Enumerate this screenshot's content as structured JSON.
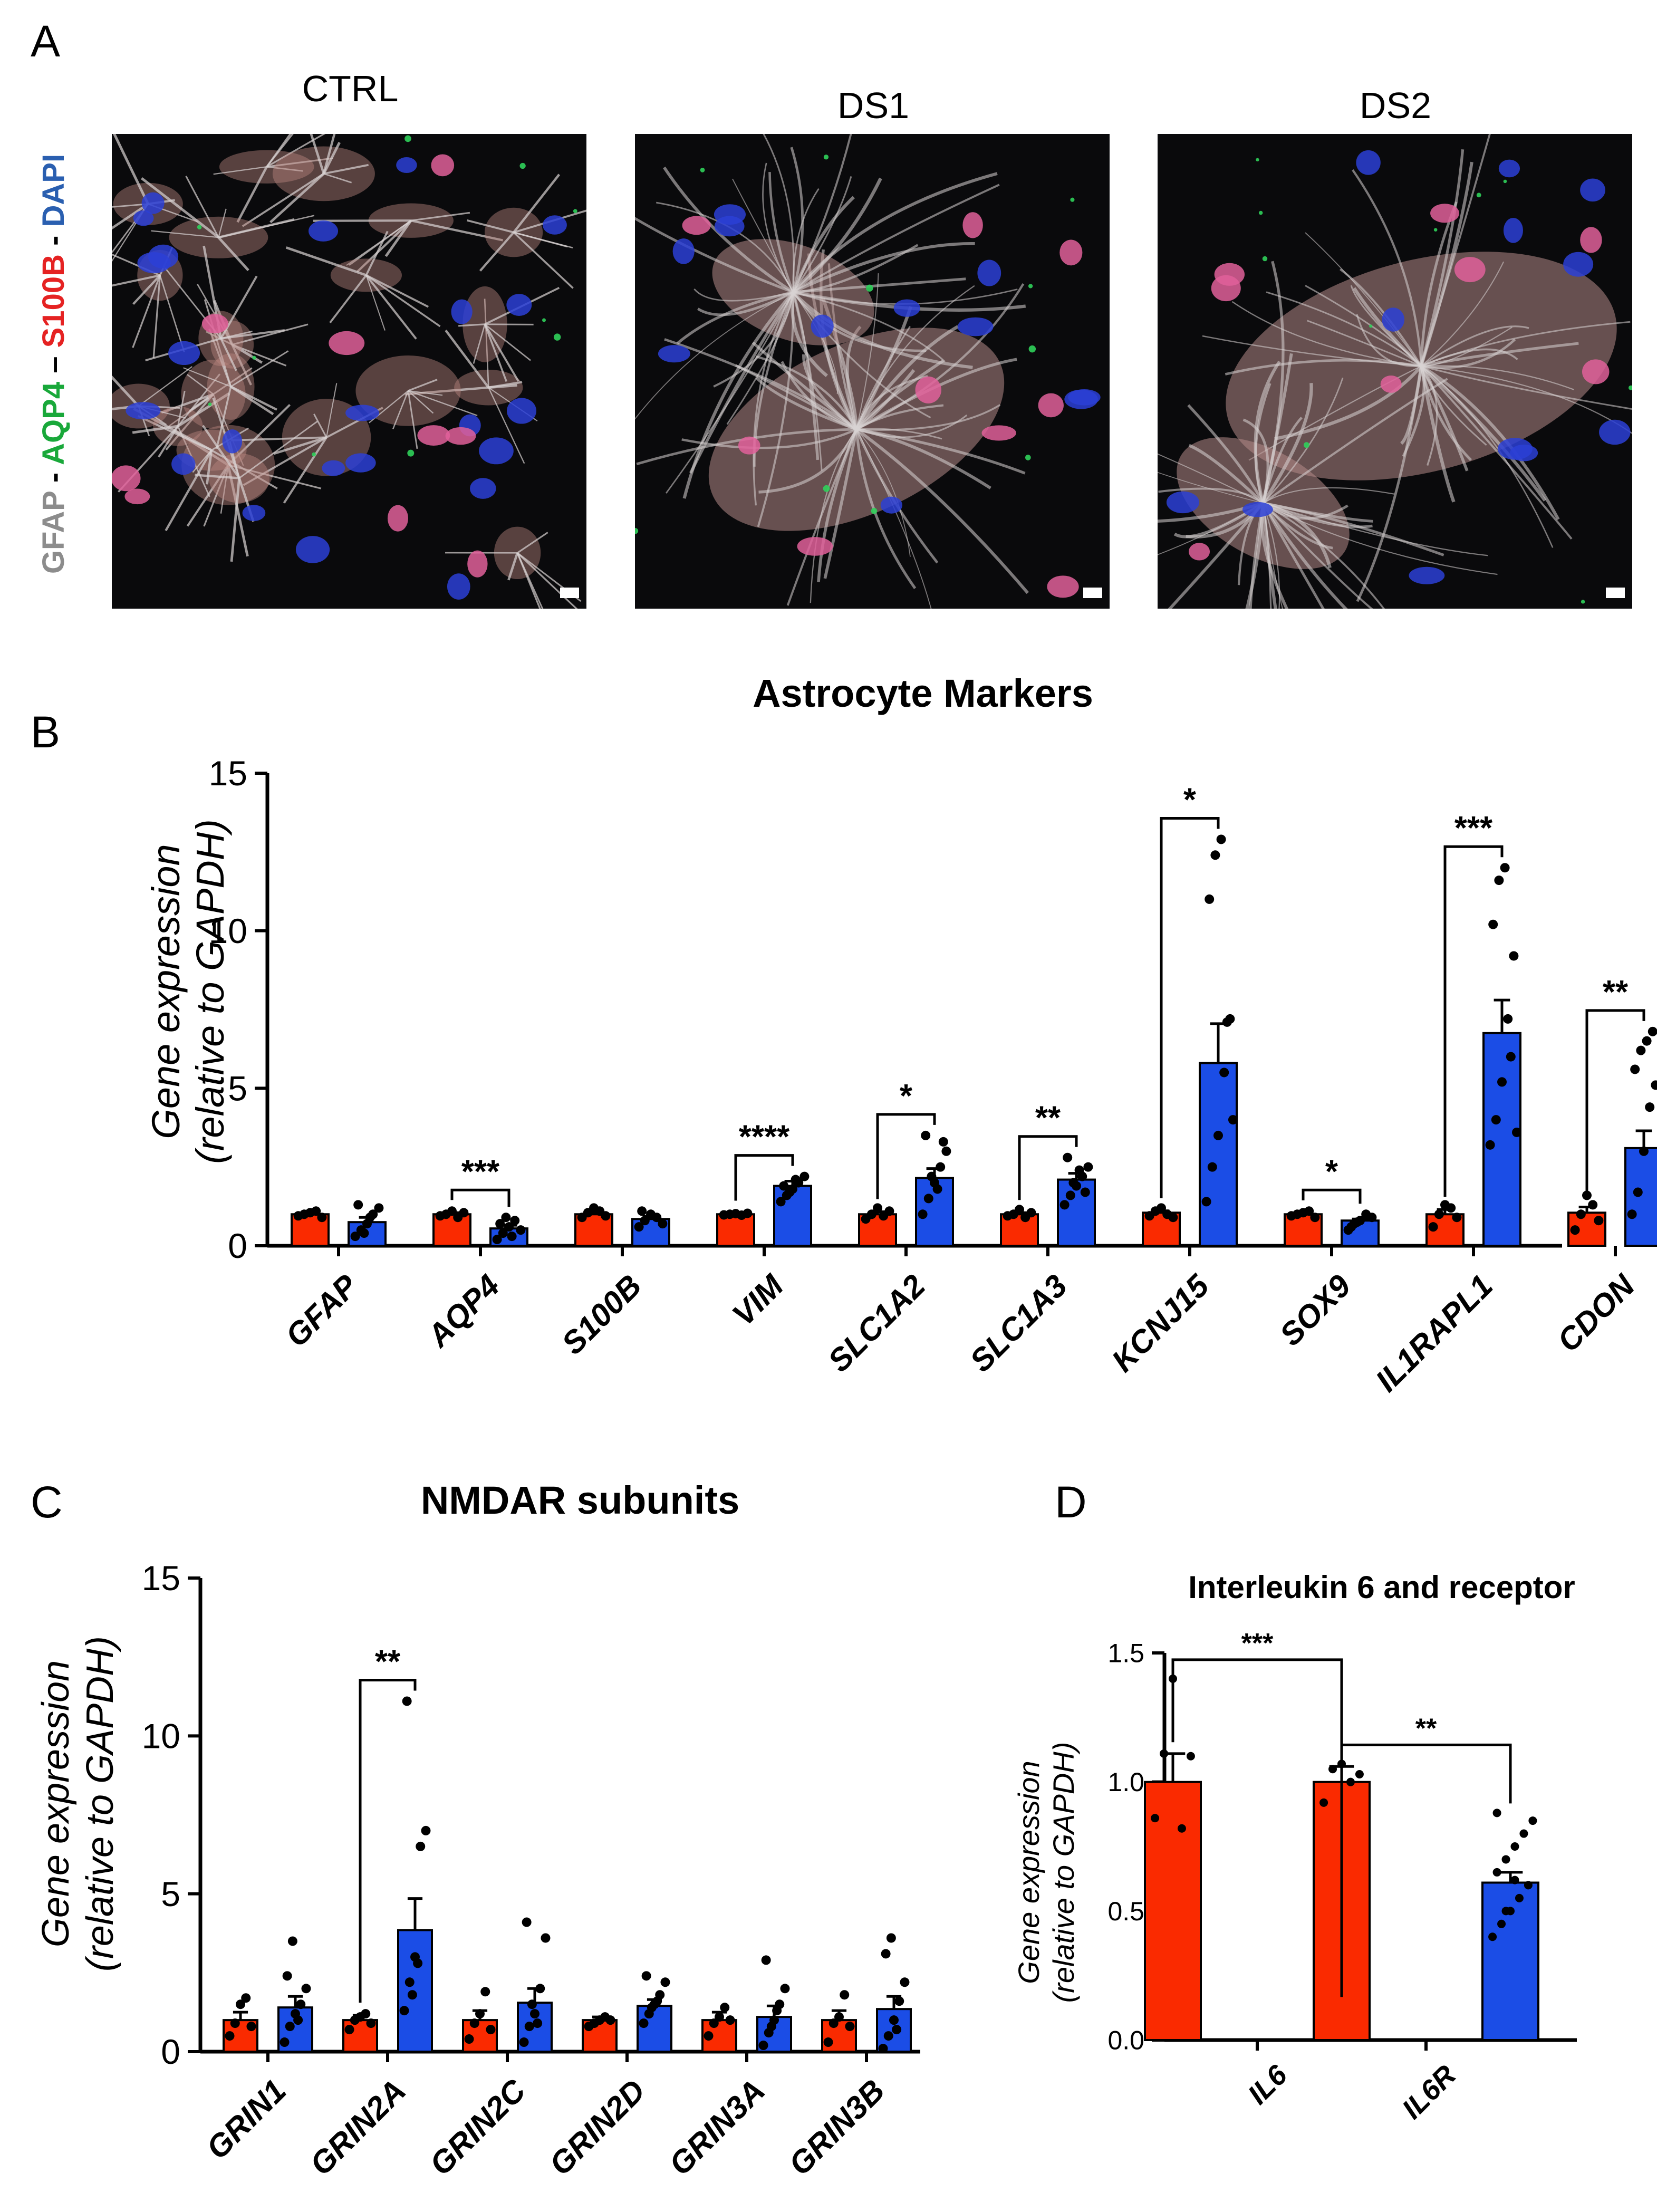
{
  "panel_labels": [
    "A",
    "B",
    "C",
    "D"
  ],
  "panel_a": {
    "titles": [
      "CTRL",
      "DS1",
      "DS2"
    ],
    "stain_label_parts": [
      {
        "text": "GFAP",
        "color": "#8c8c8c"
      },
      {
        "text": " - ",
        "color": "#000000"
      },
      {
        "text": "AQP4",
        "color": "#19a83a"
      },
      {
        "text": " – ",
        "color": "#000000"
      },
      {
        "text": "S100B",
        "color": "#e52222"
      },
      {
        "text": " - ",
        "color": "#000000"
      },
      {
        "text": "DAPI",
        "color": "#2a5fb0"
      }
    ],
    "channel_colors": {
      "gfap": "#d9d3d3",
      "s100b": "#e0609a",
      "dapi": "#2c3fd6",
      "aqp4": "#2fd05a"
    }
  },
  "colors": {
    "group1": "#fa2a00",
    "group2": "#1b4de6",
    "axis": "#000000"
  },
  "chart_data": [
    {
      "id": "B",
      "type": "bar",
      "title": "Astrocyte Markers",
      "ylabel": "Gene expression (relative to GAPDH)",
      "ylabel_lines": [
        "Gene expression",
        "(relative to GAPDH)"
      ],
      "ylim": [
        0,
        15
      ],
      "yticks": [
        "0",
        "5",
        "10",
        "15"
      ],
      "categories": [
        "GFAP",
        "AQP4",
        "S100B",
        "VIM",
        "SLC1A2",
        "SLC1A3",
        "KCNJ15",
        "SOX9",
        "IL1RAPL1",
        "CDON"
      ],
      "series": [
        {
          "color": "#fa2a00",
          "values": [
            1.0,
            1.0,
            1.0,
            1.0,
            1.0,
            1.0,
            1.05,
            1.0,
            1.0,
            1.05
          ],
          "sem": [
            0.05,
            0.05,
            0.06,
            0.03,
            0.08,
            0.05,
            0.06,
            0.04,
            0.15,
            0.18
          ],
          "points": [
            [
              0.95,
              1.0,
              1.05,
              1.1,
              0.9
            ],
            [
              0.95,
              1.0,
              1.1,
              0.9,
              1.05
            ],
            [
              0.9,
              1.05,
              1.2,
              1.1,
              0.95
            ],
            [
              0.98,
              1.0,
              1.02,
              0.97,
              1.03
            ],
            [
              0.85,
              1.0,
              1.2,
              0.95,
              1.1
            ],
            [
              0.95,
              1.0,
              1.15,
              0.9,
              1.05
            ],
            [
              0.95,
              1.1,
              1.2,
              1.0,
              0.9
            ],
            [
              0.95,
              1.0,
              1.05,
              1.1,
              0.9
            ],
            [
              0.6,
              1.0,
              1.3,
              1.2,
              0.9
            ],
            [
              0.5,
              1.0,
              1.6,
              1.3,
              0.8
            ]
          ]
        },
        {
          "color": "#1b4de6",
          "values": [
            0.75,
            0.55,
            0.85,
            1.9,
            2.15,
            2.1,
            5.8,
            0.8,
            6.75,
            3.1
          ],
          "sem": [
            0.15,
            0.1,
            0.08,
            0.15,
            0.3,
            0.2,
            1.25,
            0.05,
            1.05,
            0.55
          ],
          "points": [
            [
              0.3,
              0.5,
              0.7,
              1.0,
              1.2,
              1.3,
              0.4,
              0.9
            ],
            [
              0.2,
              0.4,
              0.6,
              0.8,
              0.5,
              0.7,
              0.9,
              0.3
            ],
            [
              0.6,
              0.8,
              1.0,
              0.9,
              0.7,
              1.1
            ],
            [
              1.4,
              1.6,
              1.8,
              2.0,
              2.2,
              1.9,
              1.7,
              2.1
            ],
            [
              1.0,
              1.5,
              2.0,
              2.5,
              3.0,
              3.5,
              2.2,
              1.8,
              3.3
            ],
            [
              1.3,
              1.6,
              1.9,
              2.2,
              2.5,
              2.8,
              2.0,
              2.4,
              1.7
            ],
            [
              1.4,
              2.5,
              3.5,
              5.5,
              7.2,
              11.0,
              12.4,
              12.9,
              7.1,
              4.0
            ],
            [
              0.5,
              0.7,
              0.8,
              1.0,
              0.9,
              0.6,
              0.75
            ],
            [
              3.2,
              4.0,
              5.2,
              7.2,
              9.2,
              10.2,
              11.6,
              12.0,
              6.0,
              3.6
            ],
            [
              1.0,
              1.7,
              3.0,
              4.4,
              5.1,
              5.6,
              6.2,
              6.5,
              6.8
            ]
          ]
        }
      ],
      "significance": [
        {
          "category": 1,
          "label": "***"
        },
        {
          "category": 3,
          "label": "****"
        },
        {
          "category": 4,
          "label": "*"
        },
        {
          "category": 5,
          "label": "**"
        },
        {
          "category": 6,
          "label": "*"
        },
        {
          "category": 7,
          "label": "*"
        },
        {
          "category": 8,
          "label": "***"
        },
        {
          "category": 9,
          "label": "**"
        }
      ],
      "grid": false,
      "legend": "none"
    },
    {
      "id": "C",
      "type": "bar",
      "title": "NMDAR subunits",
      "ylabel": "Gene expression (relative to GAPDH)",
      "ylabel_lines": [
        "Gene expression",
        "(relative to GAPDH)"
      ],
      "ylim": [
        0,
        15
      ],
      "yticks": [
        "0",
        "5",
        "10",
        "15"
      ],
      "categories": [
        "GRIN1",
        "GRIN2A",
        "GRIN2C",
        "GRIN2D",
        "GRIN3A",
        "GRIN3B"
      ],
      "series": [
        {
          "color": "#fa2a00",
          "values": [
            1.0,
            1.0,
            1.0,
            1.0,
            1.0,
            1.0
          ],
          "sem": [
            0.25,
            0.15,
            0.3,
            0.1,
            0.25,
            0.3
          ],
          "points": [
            [
              0.5,
              0.9,
              1.5,
              1.7,
              0.8
            ],
            [
              0.7,
              1.0,
              1.1,
              1.2,
              0.9
            ],
            [
              0.4,
              0.9,
              1.2,
              1.9,
              0.7
            ],
            [
              0.8,
              0.9,
              1.0,
              1.1,
              1.0
            ],
            [
              0.5,
              0.9,
              1.1,
              1.4,
              1.0
            ],
            [
              0.3,
              0.9,
              1.1,
              1.8,
              0.8
            ]
          ]
        },
        {
          "color": "#1b4de6",
          "values": [
            1.4,
            3.85,
            1.55,
            1.45,
            1.1,
            1.35
          ],
          "sem": [
            0.35,
            1.0,
            0.45,
            0.2,
            0.35,
            0.4
          ],
          "points": [
            [
              0.3,
              0.8,
              1.2,
              1.5,
              2.0,
              2.4,
              3.5,
              1.0
            ],
            [
              1.3,
              2.2,
              3.0,
              6.5,
              7.0,
              11.1,
              1.8,
              2.8
            ],
            [
              0.3,
              0.8,
              1.2,
              2.0,
              3.6,
              4.1,
              1.5,
              0.9
            ],
            [
              0.9,
              1.2,
              1.5,
              1.8,
              2.2,
              2.4,
              1.4,
              1.6
            ],
            [
              0.2,
              0.6,
              1.0,
              1.5,
              2.0,
              2.9,
              0.8,
              1.3
            ],
            [
              0.1,
              0.5,
              1.0,
              1.6,
              2.2,
              3.1,
              3.6,
              0.7
            ]
          ]
        }
      ],
      "significance": [
        {
          "category": 1,
          "label": "**"
        }
      ],
      "grid": false,
      "legend": "none"
    },
    {
      "id": "D",
      "type": "bar",
      "title": "Interleukin 6 and receptor",
      "ylabel": "Gene expression (relative to GAPDH)",
      "ylabel_lines": [
        "Gene expression",
        "(relative to GAPDH)"
      ],
      "ylim": [
        0,
        1.5
      ],
      "yticks": [
        "0.0",
        "0.5",
        "1.0",
        "1.5"
      ],
      "categories": [
        "IL6",
        "IL6R"
      ],
      "series": [
        {
          "color": "#fa2a00",
          "values": [
            1.0,
            1.0
          ],
          "sem": [
            0.11,
            0.06
          ],
          "points": [
            [
              0.86,
              1.11,
              1.4,
              0.82,
              1.1
            ],
            [
              0.92,
              1.05,
              1.07,
              1.0,
              1.03
            ]
          ]
        },
        {
          "color": "#1b4de6",
          "values": [
            0.085,
            0.61
          ],
          "sem": [
            0.01,
            0.04
          ],
          "points": [
            [
              0.05,
              0.07,
              0.08,
              0.1,
              0.12,
              0.06,
              0.09,
              0.11,
              0.04,
              0.13,
              0.08,
              0.1
            ],
            [
              0.4,
              0.45,
              0.5,
              0.55,
              0.6,
              0.65,
              0.7,
              0.75,
              0.8,
              0.85,
              0.88,
              0.5,
              0.62
            ]
          ]
        }
      ],
      "significance": [
        {
          "category": 0,
          "label": "***"
        },
        {
          "category": 1,
          "label": "**"
        }
      ],
      "grid": false,
      "legend": "none"
    }
  ]
}
